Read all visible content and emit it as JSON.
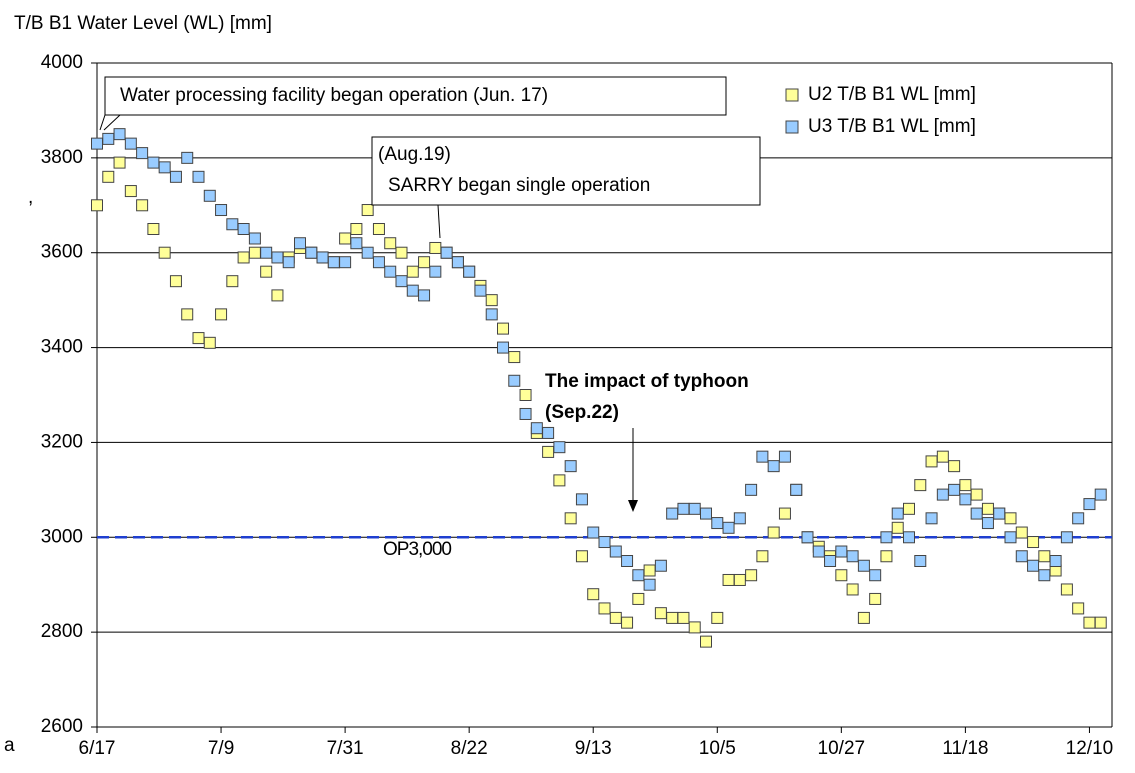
{
  "chart_data": {
    "type": "scatter",
    "y_axis_title": "T/B B1 Water Level (WL) [mm]",
    "x": [
      0,
      2,
      4,
      6,
      8,
      10,
      12,
      14,
      16,
      18,
      20,
      22,
      24,
      26,
      28,
      30,
      32,
      34,
      36,
      38,
      40,
      42,
      44,
      46,
      48,
      50,
      52,
      54,
      56,
      58,
      60,
      62,
      64,
      66,
      68,
      70,
      72,
      74,
      76,
      78,
      80,
      82,
      84,
      86,
      88,
      90,
      92,
      94,
      96,
      98,
      100,
      102,
      104,
      106,
      108,
      110,
      112,
      114,
      116,
      118,
      120,
      122,
      124,
      126,
      128,
      130,
      132,
      134,
      136,
      138,
      140,
      142,
      144,
      146,
      148,
      150,
      152,
      154,
      156,
      158,
      160,
      162,
      164,
      166,
      168,
      170,
      172,
      174,
      176,
      178
    ],
    "series": [
      {
        "name": "U2 T/B B1 WL [mm]",
        "color": "#ffff99",
        "values": [
          3700,
          3760,
          3790,
          3730,
          3700,
          3650,
          3600,
          3540,
          3470,
          3420,
          3410,
          3470,
          3540,
          3590,
          3600,
          3560,
          3510,
          3590,
          3610,
          3600,
          3590,
          3580,
          3630,
          3650,
          3690,
          3650,
          3620,
          3600,
          3560,
          3580,
          3610,
          3600,
          3580,
          3560,
          3530,
          3500,
          3440,
          3380,
          3300,
          3220,
          3180,
          3120,
          3040,
          2960,
          2880,
          2850,
          2830,
          2820,
          2870,
          2930,
          2840,
          2830,
          2830,
          2810,
          2780,
          2830,
          2910,
          2910,
          2920,
          2960,
          3010,
          3050,
          3100,
          3000,
          2980,
          2960,
          2920,
          2890,
          2830,
          2870,
          2960,
          3020,
          3060,
          3110,
          3160,
          3170,
          3150,
          3110,
          3090,
          3060,
          3050,
          3040,
          3010,
          2990,
          2960,
          2930,
          2890,
          2850,
          2820,
          2820
        ]
      },
      {
        "name": "U3 T/B B1 WL [mm]",
        "color": "#99ccff",
        "values": [
          3830,
          3840,
          3850,
          3830,
          3810,
          3790,
          3780,
          3760,
          3800,
          3760,
          3720,
          3690,
          3660,
          3650,
          3630,
          3600,
          3590,
          3580,
          3620,
          3600,
          3590,
          3580,
          3580,
          3620,
          3600,
          3580,
          3560,
          3540,
          3520,
          3510,
          3560,
          3600,
          3580,
          3560,
          3520,
          3470,
          3400,
          3330,
          3260,
          3230,
          3220,
          3190,
          3150,
          3080,
          3010,
          2990,
          2970,
          2950,
          2920,
          2900,
          2940,
          3050,
          3060,
          3060,
          3050,
          3030,
          3020,
          3040,
          3100,
          3170,
          3150,
          3170,
          3100,
          3000,
          2970,
          2950,
          2970,
          2960,
          2940,
          2920,
          3000,
          3050,
          3000,
          2950,
          3040,
          3090,
          3100,
          3080,
          3050,
          3030,
          3050,
          3000,
          2960,
          2940,
          2920,
          2950,
          3000,
          3040,
          3070,
          3090
        ]
      }
    ],
    "xlim": [
      0,
      180
    ],
    "xticks": [
      {
        "value": 0,
        "label": "6/17"
      },
      {
        "value": 22,
        "label": "7/9"
      },
      {
        "value": 44,
        "label": "7/31"
      },
      {
        "value": 66,
        "label": "8/22"
      },
      {
        "value": 88,
        "label": "9/13"
      },
      {
        "value": 110,
        "label": "10/5"
      },
      {
        "value": 132,
        "label": "10/27"
      },
      {
        "value": 154,
        "label": "11/18"
      },
      {
        "value": 176,
        "label": "12/10"
      }
    ],
    "ylim": [
      2600,
      4000
    ],
    "yticks": [
      2600,
      2800,
      3000,
      3200,
      3400,
      3600,
      3800,
      4000
    ],
    "grid": true,
    "legend": "upper right",
    "reference_line": {
      "value": 3000,
      "label": "OP3,000",
      "color": "#1f3fd0"
    },
    "annotations": [
      "Water processing facility began operation (Jun. 17)",
      "(Aug.19)",
      "SARRY began single operation",
      "The impact of typhoon",
      "(Sep.22)"
    ],
    "fragments": [
      ",",
      "a"
    ]
  }
}
